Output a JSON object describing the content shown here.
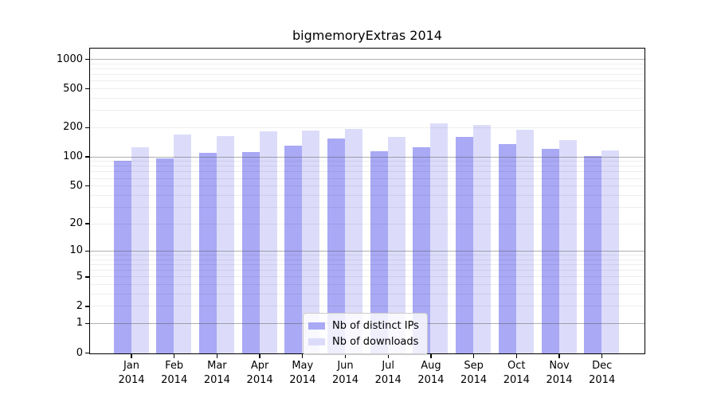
{
  "chart_data": {
    "type": "bar",
    "title": "bigmemoryExtras 2014",
    "categories": [
      "Jan",
      "Feb",
      "Mar",
      "Apr",
      "May",
      "Jun",
      "Jul",
      "Aug",
      "Sep",
      "Oct",
      "Nov",
      "Dec"
    ],
    "category_year": "2014",
    "series": [
      {
        "name": "Nb of distinct IPs",
        "color": "#a9a9f5",
        "values": [
          92,
          97,
          112,
          114,
          132,
          155,
          115,
          127,
          161,
          136,
          122,
          103
        ]
      },
      {
        "name": "Nb of downloads",
        "color": "#dcdcfa",
        "values": [
          128,
          172,
          165,
          186,
          187,
          197,
          161,
          224,
          215,
          194,
          151,
          118
        ]
      }
    ],
    "xlabel": "",
    "ylabel": "",
    "yscale": "log1p",
    "ylim": [
      0,
      1280
    ],
    "yticks": [
      0,
      1,
      2,
      5,
      10,
      20,
      50,
      100,
      200,
      500,
      1000
    ],
    "major_gridlines": [
      1,
      10,
      100,
      1000
    ],
    "minor_gridlines": [
      2,
      3,
      4,
      5,
      6,
      7,
      8,
      9,
      20,
      30,
      40,
      50,
      60,
      70,
      80,
      90,
      200,
      300,
      400,
      500,
      600,
      700,
      800,
      900
    ],
    "grid": true,
    "legend_position": "lower-center-inside",
    "colors": {
      "axis": "#000000",
      "major_grid": "#8c8c8c",
      "minor_grid": "#ededed",
      "legend_border": "#cccccc"
    }
  }
}
